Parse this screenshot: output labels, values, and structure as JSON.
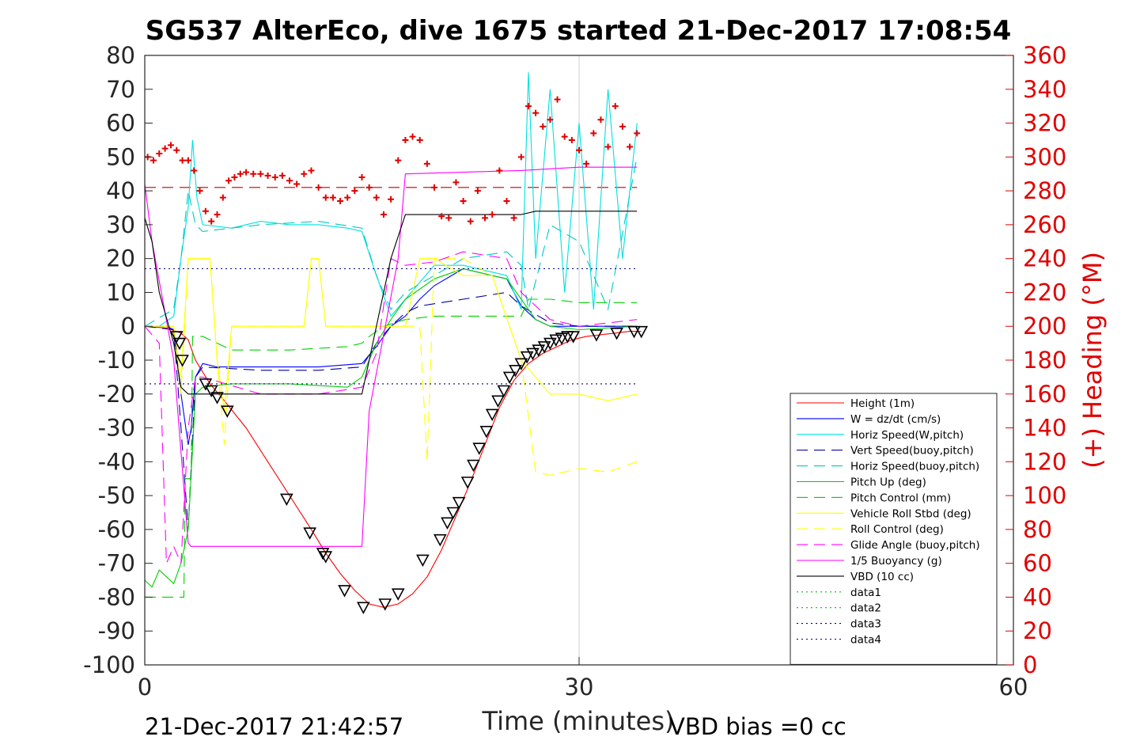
{
  "chart_data": {
    "type": "line",
    "title": "SG537 AlterEco, dive 1675 started 21-Dec-2017 17:08:54",
    "xlabel": "Time (minutes)",
    "ylabel_right": "(+) Heading (°M)",
    "xlim": [
      0,
      60
    ],
    "ylim": [
      -100,
      80
    ],
    "ylim_right": [
      0,
      360
    ],
    "xticks": [
      "0",
      "30",
      "60"
    ],
    "yticks": [
      "80",
      "70",
      "60",
      "50",
      "40",
      "30",
      "20",
      "10",
      "0",
      "-10",
      "-20",
      "-30",
      "-40",
      "-50",
      "-60",
      "-70",
      "-80",
      "-90",
      "-100"
    ],
    "yticks_right": [
      "360",
      "340",
      "320",
      "300",
      "280",
      "260",
      "240",
      "220",
      "200",
      "180",
      "160",
      "140",
      "120",
      "100",
      "80",
      "60",
      "40",
      "20",
      "0"
    ],
    "grid": "x at 30",
    "legend_position": "lower-right",
    "colors": {
      "heading": "#e00000",
      "right_axis": "#e00000"
    },
    "footer_left": "21-Dec-2017 21:42:57",
    "footer_right": "VBD bias =0 cc",
    "series": [
      {
        "name": "Height (1m)",
        "color": "#ff0000",
        "style": "solid",
        "x": [
          0,
          1.5,
          2.5,
          3,
          3.5,
          4.5,
          5.5,
          7,
          8.5,
          10,
          11.5,
          12.5,
          13.5,
          14.5,
          15.5,
          16.5,
          17.5,
          18.5,
          19.5,
          20.5,
          21.5,
          22.5,
          23.5,
          24.5,
          25.5,
          26.5,
          27.5,
          28.5,
          29.5,
          30.5,
          31.5,
          32.5,
          33.5,
          34.3
        ],
        "y": [
          0,
          -0.5,
          -2,
          -4,
          -10,
          -17,
          -22,
          -30,
          -40,
          -50,
          -60,
          -67,
          -73,
          -78,
          -82,
          -83,
          -82,
          -79,
          -74,
          -66,
          -56,
          -46,
          -35,
          -24,
          -16,
          -11,
          -8,
          -6,
          -4,
          -3,
          -2.5,
          -2,
          -1.5,
          -1.5
        ]
      },
      {
        "name": "W = dz/dt (cm/s)",
        "color": "#0000ff",
        "style": "solid",
        "x": [
          0,
          1.5,
          2,
          2.5,
          3,
          3.2,
          3.5,
          4,
          5,
          8,
          12,
          15,
          16,
          17,
          18,
          19,
          20,
          22,
          24,
          25,
          26,
          27,
          28,
          30,
          32,
          34
        ],
        "y": [
          0,
          0,
          -1,
          -20,
          -35,
          -30,
          -15,
          -11,
          -12,
          -12,
          -12,
          -11,
          -6,
          0,
          3,
          8,
          12,
          17,
          15,
          14,
          6,
          2,
          0,
          0,
          0,
          0
        ]
      },
      {
        "name": "Horiz Speed(W,pitch)",
        "color": "#00e0e0",
        "style": "solid",
        "x": [
          0,
          1,
          2,
          2.5,
          3,
          3.3,
          3.6,
          4,
          6,
          8,
          10,
          12,
          14,
          15,
          16,
          17,
          18,
          20,
          22,
          24,
          25,
          26,
          26.5,
          27,
          28,
          29,
          30,
          31,
          32,
          33,
          34
        ],
        "y": [
          0,
          0,
          3,
          20,
          35,
          55,
          38,
          30,
          29,
          31,
          30,
          30,
          29,
          28,
          15,
          3,
          8,
          18,
          18,
          16,
          15,
          5,
          75,
          20,
          70,
          10,
          60,
          5,
          70,
          20,
          60
        ]
      },
      {
        "name": "Vert Speed(buoy,pitch)",
        "color": "#0000a0",
        "style": "dash",
        "x": [
          0,
          2,
          2.5,
          3,
          3.5,
          4,
          8,
          12,
          15,
          16,
          17,
          18,
          19,
          22,
          25,
          26,
          28,
          30,
          34
        ],
        "y": [
          0,
          -1,
          -30,
          -60,
          -15,
          -12,
          -13,
          -13,
          -12,
          -5,
          0,
          4,
          6,
          8,
          10,
          6,
          1,
          0,
          0
        ]
      },
      {
        "name": "Horiz Speed(buoy,pitch)",
        "color": "#00c8c8",
        "style": "dash",
        "x": [
          0,
          2,
          2.5,
          3,
          3.5,
          4,
          8,
          12,
          15,
          16,
          17,
          18,
          20,
          22,
          25,
          26,
          26.5,
          28,
          30,
          32,
          34
        ],
        "y": [
          0,
          5,
          20,
          40,
          30,
          28,
          30,
          31,
          29,
          15,
          5,
          10,
          15,
          20,
          22,
          18,
          5,
          30,
          25,
          5,
          50
        ]
      },
      {
        "name": "Pitch Up (deg)",
        "color": "#00d000",
        "style": "solid",
        "x": [
          0,
          0.5,
          1,
          2,
          2.5,
          3,
          3.5,
          4,
          6,
          10,
          14,
          15,
          16,
          17,
          18,
          20,
          22,
          24,
          25,
          26,
          27,
          28,
          30,
          34
        ],
        "y": [
          -75,
          -77,
          -72,
          -76,
          -70,
          -60,
          -20,
          -18,
          -17,
          -17,
          -18,
          -15,
          -5,
          2,
          8,
          14,
          17,
          15,
          14,
          8,
          2,
          0,
          -1,
          0
        ]
      },
      {
        "name": "Pitch Control (mm)",
        "color": "#00d000",
        "style": "dash",
        "x": [
          0,
          2.7,
          2.8,
          3.2,
          3.3,
          4,
          6,
          10,
          14,
          15,
          15.5,
          16.5,
          18,
          20,
          22,
          26,
          26.5,
          28,
          30,
          34
        ],
        "y": [
          -80,
          -80,
          -45,
          -45,
          -3,
          -3,
          -7,
          -7,
          -6,
          -5,
          -3,
          0,
          2,
          3,
          3,
          3,
          8,
          8,
          7,
          7
        ]
      },
      {
        "name": "Vehicle Roll Stbd (deg)",
        "color": "#ffff00",
        "style": "solid",
        "x": [
          0,
          2,
          2.5,
          3,
          4.5,
          5,
          5.5,
          6,
          10,
          11,
          11.5,
          12,
          12.5,
          15,
          17,
          18,
          19,
          20,
          22,
          24,
          26,
          27,
          28,
          30,
          32,
          34
        ],
        "y": [
          0,
          0,
          -15,
          20,
          20,
          -10,
          -25,
          0,
          0,
          0,
          20,
          20,
          0,
          0,
          0,
          0,
          20,
          20,
          15,
          15,
          -10,
          -15,
          -20,
          -20,
          -22,
          -20
        ]
      },
      {
        "name": "Roll Control (deg)",
        "color": "#ffff00",
        "style": "dash",
        "x": [
          0,
          2,
          2.5,
          3,
          4.5,
          5,
          5.5,
          6,
          10,
          11,
          11.5,
          12,
          12.5,
          15,
          17,
          19,
          19.5,
          20,
          22,
          24,
          26,
          27,
          28,
          30,
          32,
          34
        ],
        "y": [
          0,
          0,
          -20,
          20,
          20,
          -10,
          -35,
          0,
          0,
          0,
          20,
          20,
          0,
          0,
          0,
          0,
          -40,
          20,
          20,
          15,
          -10,
          -43,
          -44,
          -42,
          -43,
          -40
        ]
      },
      {
        "name": "Glide Angle (buoy,pitch)",
        "color": "#ff00ff",
        "style": "dash",
        "x": [
          0,
          1,
          1.5,
          2,
          2.5,
          3,
          3.5,
          4,
          8,
          12,
          15,
          16,
          17,
          18,
          20,
          22,
          25,
          26,
          28,
          30,
          34
        ],
        "y": [
          0,
          -5,
          -70,
          -65,
          -70,
          -30,
          -15,
          -15,
          -20,
          -20,
          -18,
          -8,
          20,
          18,
          19,
          22,
          20,
          10,
          2,
          0,
          2
        ]
      },
      {
        "name": "1/5 Buoyancy (g)",
        "color": "#ff00ff",
        "style": "solid",
        "x": [
          0,
          0.5,
          2,
          3,
          3.2,
          14,
          15,
          15.5,
          17.5,
          18,
          26,
          30,
          34
        ],
        "y": [
          42,
          25,
          -10,
          -64,
          -65,
          -65,
          -65,
          -25,
          20,
          45,
          46,
          47,
          47
        ]
      },
      {
        "name": "VBD (10 cc)",
        "color": "#000000",
        "style": "solid",
        "x": [
          0,
          0.5,
          1,
          2,
          2.5,
          3,
          14,
          15,
          15.5,
          16,
          17,
          18,
          26,
          27,
          34
        ],
        "y": [
          32,
          25,
          10,
          -5,
          -18,
          -20,
          -20,
          -20,
          -10,
          0,
          20,
          33,
          33,
          34,
          34
        ]
      },
      {
        "name": "data1",
        "color": "#00c000",
        "style": "dot",
        "x": [],
        "y": []
      },
      {
        "name": "data2",
        "color": "#00c000",
        "style": "dot",
        "x": [],
        "y": []
      },
      {
        "name": "data3",
        "color": "#000080",
        "style": "dot",
        "x": [
          0,
          34
        ],
        "y": [
          -17,
          -17
        ]
      },
      {
        "name": "data4",
        "color": "#000080",
        "style": "dot",
        "x": [
          0,
          34
        ],
        "y": [
          17,
          17
        ]
      }
    ],
    "extra_lines": [
      {
        "color": "#c00000",
        "style": "dash",
        "x": [
          0,
          34
        ],
        "y": [
          41,
          41
        ]
      }
    ],
    "heading": {
      "marker": "+",
      "x": [
        0.2,
        0.6,
        1.0,
        1.4,
        1.8,
        2.2,
        2.6,
        3.0,
        3.4,
        3.8,
        4.2,
        4.6,
        5.0,
        5.4,
        5.8,
        6.2,
        6.6,
        7.0,
        7.5,
        8.0,
        8.5,
        9.0,
        9.5,
        10.0,
        10.5,
        11.0,
        11.5,
        12.0,
        12.5,
        13.0,
        13.5,
        14.0,
        14.5,
        15.0,
        15.5,
        16.0,
        16.5,
        17.0,
        17.5,
        18.0,
        18.5,
        19.0,
        19.5,
        20.0,
        20.5,
        21.0,
        21.5,
        22.0,
        22.5,
        23.0,
        23.5,
        24.0,
        24.5,
        25.0,
        25.5,
        26.0,
        26.5,
        27.0,
        27.5,
        28.0,
        28.5,
        29.0,
        29.5,
        30.0,
        30.5,
        31.0,
        31.5,
        32.0,
        32.5,
        33.0,
        33.5,
        34.0
      ],
      "y": [
        300,
        298,
        302,
        305,
        307,
        304,
        298,
        298,
        292,
        280,
        268,
        262,
        266,
        276,
        286,
        288,
        290,
        291,
        290,
        290,
        289,
        288,
        289,
        286,
        284,
        290,
        292,
        282,
        276,
        276,
        274,
        276,
        280,
        288,
        282,
        276,
        266,
        275,
        298,
        310,
        312,
        310,
        296,
        282,
        265,
        264,
        285,
        274,
        262,
        280,
        264,
        266,
        292,
        274,
        264,
        300,
        330,
        326,
        318,
        322,
        334,
        312,
        310,
        304,
        296,
        314,
        322,
        306,
        330,
        318,
        306,
        314
      ]
    },
    "markers": {
      "symbol": "triangle",
      "x": [
        2.2,
        2.4,
        2.6,
        4.2,
        4.6,
        5.0,
        5.7,
        9.8,
        11.4,
        12.3,
        12.5,
        13.8,
        15.1,
        16.6,
        17.5,
        19.2,
        20.4,
        20.9,
        21.3,
        21.7,
        22.3,
        22.7,
        23.1,
        23.6,
        24.0,
        24.4,
        24.8,
        25.2,
        25.6,
        26.0,
        26.4,
        26.8,
        27.2,
        27.6,
        28.0,
        28.4,
        28.8,
        29.2,
        29.6,
        31.2,
        32.6,
        33.8,
        34.3
      ],
      "y": [
        -3,
        -5,
        -10,
        -17,
        -19,
        -21,
        -25,
        -51,
        -61,
        -67,
        -68,
        -78,
        -83,
        -82,
        -79,
        -69,
        -63,
        -58,
        -55,
        -52,
        -46,
        -41,
        -36,
        -31,
        -26,
        -22,
        -19,
        -15,
        -13,
        -11,
        -9,
        -8,
        -7,
        -6,
        -5,
        -4,
        -3.5,
        -3,
        -3,
        -2.5,
        -2,
        -1.5,
        -1.5
      ]
    }
  }
}
